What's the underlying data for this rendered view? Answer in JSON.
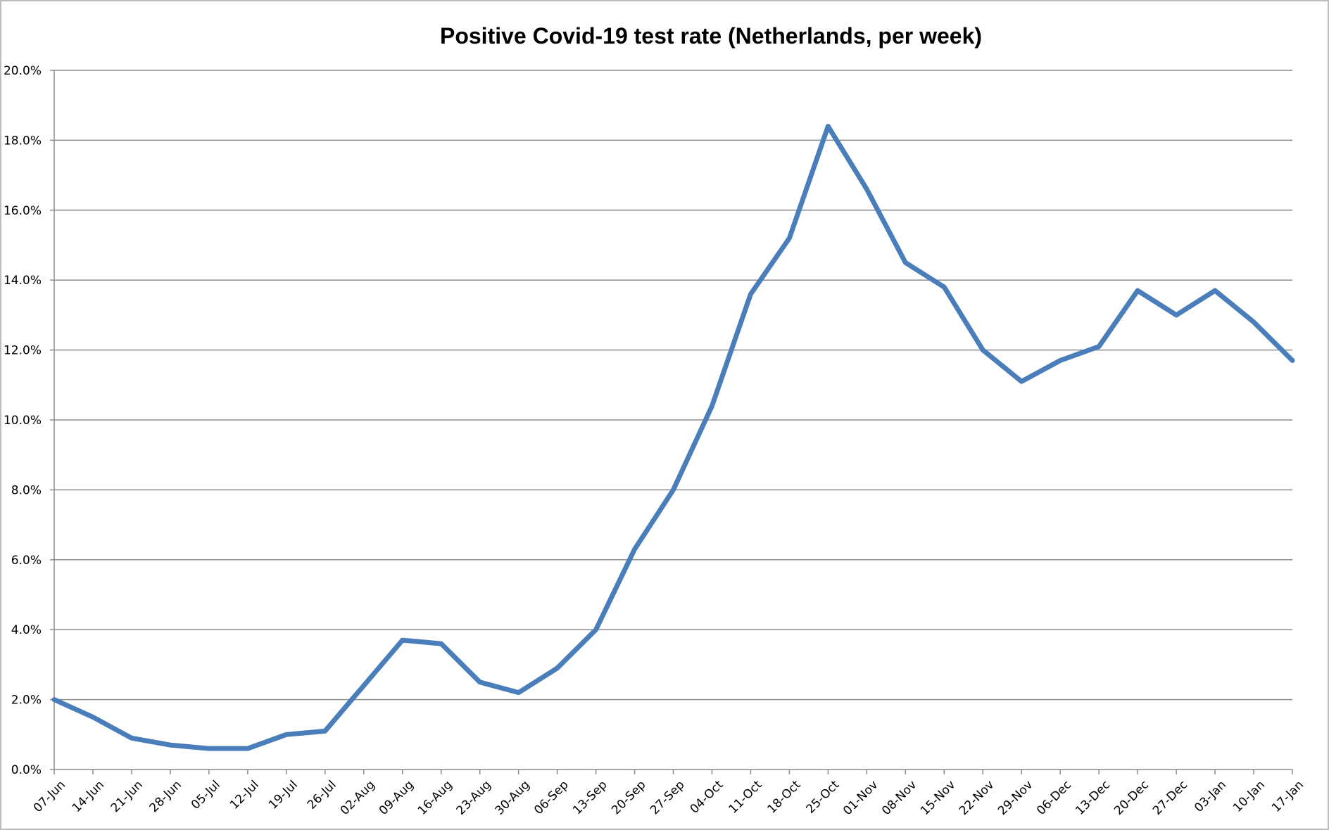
{
  "chart_data": {
    "type": "line",
    "title": "Positive Covid-19 test rate (Netherlands, per week)",
    "xlabel": "",
    "ylabel": "",
    "ylim": [
      0,
      20
    ],
    "y_tick_step": 2,
    "y_format": "percent_1dp",
    "grid": true,
    "legend": "none",
    "categories": [
      "07-Jun",
      "14-Jun",
      "21-Jun",
      "28-Jun",
      "05-Jul",
      "12-Jul",
      "19-Jul",
      "26-Jul",
      "02-Aug",
      "09-Aug",
      "16-Aug",
      "23-Aug",
      "30-Aug",
      "06-Sep",
      "13-Sep",
      "20-Sep",
      "27-Sep",
      "04-Oct",
      "11-Oct",
      "18-Oct",
      "25-Oct",
      "01-Nov",
      "08-Nov",
      "15-Nov",
      "22-Nov",
      "29-Nov",
      "06-Dec",
      "13-Dec",
      "20-Dec",
      "27-Dec",
      "03-Jan",
      "10-Jan",
      "17-Jan"
    ],
    "series": [
      {
        "color": "#4a7ebb",
        "values": [
          2.0,
          1.5,
          0.9,
          0.7,
          0.6,
          0.6,
          1.0,
          1.1,
          2.4,
          3.7,
          3.6,
          2.5,
          2.2,
          2.9,
          4.0,
          6.3,
          8.0,
          10.4,
          13.6,
          15.2,
          18.4,
          16.6,
          14.5,
          13.8,
          12.0,
          11.1,
          11.7,
          12.1,
          13.7,
          13.0,
          13.7,
          12.8,
          11.7
        ]
      }
    ]
  }
}
